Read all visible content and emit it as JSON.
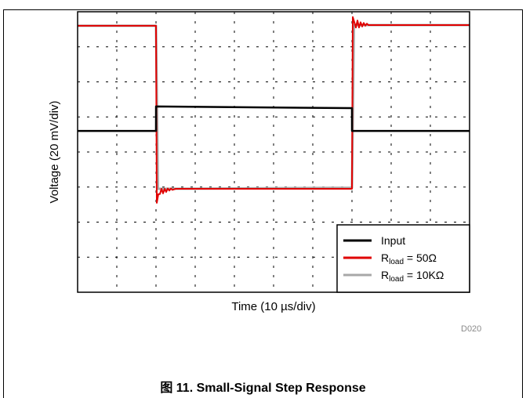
{
  "chart_data": {
    "type": "line",
    "title": "",
    "xlabel": "Time (10 µs/div)",
    "ylabel": "Voltage (20 mV/div)",
    "xlim": [
      0,
      10
    ],
    "ylim": [
      0,
      8
    ],
    "x_divisions": 10,
    "y_divisions": 8,
    "grid": true,
    "grid_style": "dashed",
    "legend_position": "bottom-right",
    "series": [
      {
        "name": "Input",
        "color": "#000000",
        "x": [
          0,
          2,
          2.001,
          7,
          7.001,
          10
        ],
        "y": [
          4.6,
          4.6,
          5.3,
          5.25,
          4.6,
          4.6
        ]
      },
      {
        "name": "Rload = 50Ω",
        "color": "#e00000",
        "x": [
          0,
          2,
          2.02,
          2.06,
          2.1,
          2.14,
          2.18,
          2.22,
          2.26,
          2.3,
          2.34,
          2.38,
          2.42,
          2.5,
          7,
          7.02,
          7.06,
          7.1,
          7.14,
          7.18,
          7.22,
          7.26,
          7.3,
          7.34,
          7.38,
          7.42,
          7.5,
          10
        ],
        "y": [
          7.6,
          7.6,
          2.55,
          2.8,
          2.8,
          2.95,
          2.82,
          2.95,
          2.86,
          2.96,
          2.9,
          2.96,
          2.92,
          2.95,
          2.95,
          7.85,
          7.7,
          7.55,
          7.75,
          7.55,
          7.7,
          7.58,
          7.68,
          7.6,
          7.66,
          7.62,
          7.62,
          7.62
        ]
      },
      {
        "name": "Rload = 10KΩ",
        "color": "#a8a8a8",
        "x": [
          0,
          2,
          2.05,
          7,
          7.05,
          10
        ],
        "y": [
          7.6,
          7.6,
          2.95,
          2.98,
          7.62,
          7.62
        ]
      }
    ]
  },
  "legend": [
    {
      "label": "Input",
      "sub": "",
      "suffix": "",
      "color": "#000000"
    },
    {
      "label": "R",
      "sub": "load",
      "suffix": " = 50Ω",
      "color": "#e00000"
    },
    {
      "label": "R",
      "sub": "load",
      "suffix": " = 10KΩ",
      "color": "#a8a8a8"
    }
  ],
  "figure_id": "D020",
  "caption": "图 11. Small-Signal Step Response"
}
